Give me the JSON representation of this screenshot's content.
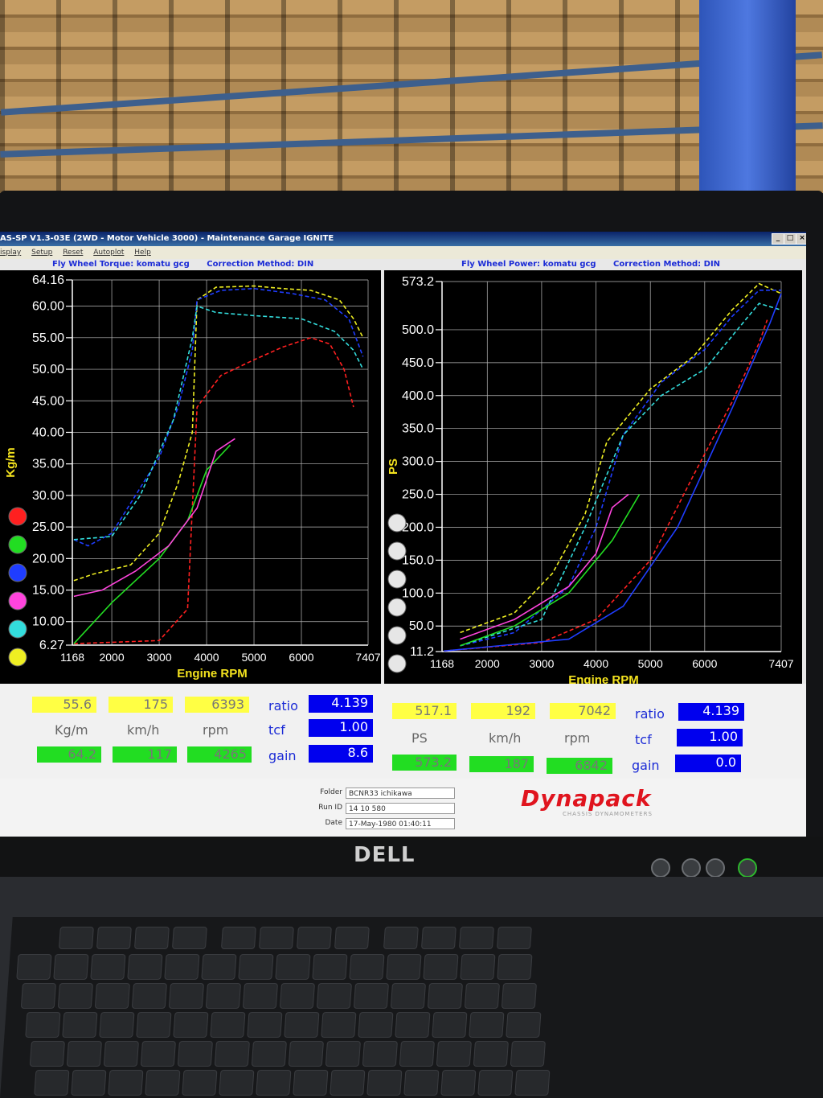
{
  "window": {
    "title": "AS-SP V1.3-03E  (2WD - Motor Vehicle 3000) - Maintenance Garage IGNITE",
    "menu": [
      "isplay",
      "Setup",
      "Reset",
      "Autoplot",
      "Help"
    ],
    "controls": [
      "_",
      "□",
      "×"
    ]
  },
  "torque_chart": {
    "header_left": "Fly Wheel Torque: komatu gcg",
    "header_right": "Correction Method: DIN",
    "ylabel": "Kg/m",
    "xlabel": "Engine RPM",
    "yticks": [
      "64.16",
      "60.00",
      "55.00",
      "50.00",
      "45.00",
      "40.00",
      "35.00",
      "30.00",
      "25.00",
      "20.00",
      "15.00",
      "10.00",
      "6.27"
    ],
    "xticks": [
      "1168",
      "2000",
      "3000",
      "4000",
      "5000",
      "6000",
      "7407"
    ]
  },
  "power_chart": {
    "header_left": "Fly Wheel Power: komatu gcg",
    "header_right": "Correction Method: DIN",
    "ylabel": "PS",
    "xlabel": "Engine RPM",
    "yticks": [
      "573.2",
      "500.0",
      "450.0",
      "400.0",
      "350.0",
      "300.0",
      "250.0",
      "200.0",
      "150.0",
      "100.0",
      "50.0",
      "11.2"
    ],
    "xticks": [
      "1168",
      "2000",
      "3000",
      "4000",
      "5000",
      "6000",
      "7407"
    ]
  },
  "legend_colors": [
    "#ff2020",
    "#22dd22",
    "#1f3dff",
    "#ff44dd",
    "#33dddd",
    "#eeee22"
  ],
  "readout_left": {
    "top": [
      "55.6",
      "175",
      "6393"
    ],
    "units": [
      "Kg/m",
      "km/h",
      "rpm"
    ],
    "bottom": [
      "64.2",
      "117",
      "4265"
    ],
    "labels": [
      "ratio",
      "tcf",
      "gain"
    ],
    "values": [
      "4.139",
      "1.00",
      "8.6"
    ]
  },
  "readout_right": {
    "top": [
      "517.1",
      "192",
      "7042"
    ],
    "units": [
      "PS",
      "km/h",
      "rpm"
    ],
    "bottom": [
      "573.2",
      "187",
      "6842"
    ],
    "labels": [
      "ratio",
      "tcf",
      "gain"
    ],
    "values": [
      "4.139",
      "1.00",
      "0.0"
    ]
  },
  "footer": {
    "folder_label": "Folder",
    "folder": "BCNR33 ichikawa",
    "run_label": "Run ID",
    "run": "14 10 580",
    "date_label": "Date",
    "date": "17-May-1980  01:40:11",
    "brand": "Dynapack",
    "brand_sub": "CHASSIS DYNAMOMETERS"
  },
  "monitor": {
    "brand": "DELL"
  },
  "chart_data": [
    {
      "type": "line",
      "title": "Fly Wheel Torque: komatu gcg",
      "xlabel": "Engine RPM",
      "ylabel": "Kg/m",
      "xlim": [
        1168,
        7407
      ],
      "ylim": [
        6.27,
        64.16
      ],
      "series": [
        {
          "color": "#eeee22",
          "points": [
            [
              1200,
              16.5
            ],
            [
              1600,
              17.5
            ],
            [
              2400,
              19
            ],
            [
              3000,
              24
            ],
            [
              3400,
              32
            ],
            [
              3700,
              40
            ],
            [
              3800,
              61
            ],
            [
              4200,
              63
            ],
            [
              5000,
              63.2
            ],
            [
              5600,
              62.8
            ],
            [
              6200,
              62.5
            ],
            [
              6800,
              61
            ],
            [
              7100,
              58
            ],
            [
              7300,
              55
            ]
          ]
        },
        {
          "color": "#1f3dff",
          "points": [
            [
              1200,
              23
            ],
            [
              1500,
              22
            ],
            [
              2000,
              24
            ],
            [
              2500,
              30
            ],
            [
              3000,
              36
            ],
            [
              3400,
              44
            ],
            [
              3700,
              53
            ],
            [
              3800,
              61
            ],
            [
              4300,
              62.5
            ],
            [
              5000,
              62.8
            ],
            [
              5800,
              62
            ],
            [
              6500,
              61
            ],
            [
              7000,
              58
            ],
            [
              7300,
              52
            ]
          ]
        },
        {
          "color": "#33dddd",
          "points": [
            [
              1200,
              23
            ],
            [
              2000,
              23.5
            ],
            [
              2600,
              30
            ],
            [
              3300,
              42
            ],
            [
              3700,
              55
            ],
            [
              3800,
              60
            ],
            [
              4200,
              59
            ],
            [
              5000,
              58.5
            ],
            [
              6000,
              58
            ],
            [
              6700,
              56
            ],
            [
              7100,
              53
            ],
            [
              7300,
              50
            ]
          ]
        },
        {
          "color": "#ff2020",
          "points": [
            [
              1200,
              6.5
            ],
            [
              3000,
              7
            ],
            [
              3600,
              12
            ],
            [
              3800,
              44
            ],
            [
              4300,
              49
            ],
            [
              5000,
              51.5
            ],
            [
              5600,
              53.5
            ],
            [
              6200,
              55
            ],
            [
              6600,
              54
            ],
            [
              6900,
              50
            ],
            [
              7100,
              44
            ]
          ]
        },
        {
          "color": "#22dd22",
          "points": [
            [
              1200,
              6.5
            ],
            [
              2000,
              13
            ],
            [
              3000,
              20
            ],
            [
              3600,
              26
            ],
            [
              4000,
              34
            ],
            [
              4500,
              38
            ]
          ]
        },
        {
          "color": "#ff44dd",
          "points": [
            [
              1200,
              14
            ],
            [
              1800,
              15
            ],
            [
              2500,
              18
            ],
            [
              3200,
              22
            ],
            [
              3800,
              28
            ],
            [
              4200,
              37
            ],
            [
              4600,
              39
            ]
          ]
        }
      ]
    },
    {
      "type": "line",
      "title": "Fly Wheel Power: komatu gcg",
      "xlabel": "Engine RPM",
      "ylabel": "PS",
      "xlim": [
        1168,
        7407
      ],
      "ylim": [
        11.2,
        573.2
      ],
      "series": [
        {
          "color": "#eeee22",
          "points": [
            [
              1500,
              40
            ],
            [
              2500,
              70
            ],
            [
              3200,
              130
            ],
            [
              3800,
              220
            ],
            [
              4200,
              330
            ],
            [
              5000,
              410
            ],
            [
              5800,
              460
            ],
            [
              6500,
              530
            ],
            [
              7000,
              570
            ],
            [
              7407,
              555
            ]
          ]
        },
        {
          "color": "#1f3dff",
          "points": [
            [
              1500,
              20
            ],
            [
              2500,
              40
            ],
            [
              3500,
              110
            ],
            [
              4000,
              200
            ],
            [
              4500,
              340
            ],
            [
              5200,
              420
            ],
            [
              6000,
              470
            ],
            [
              6500,
              520
            ],
            [
              7000,
              560
            ],
            [
              7407,
              560
            ]
          ]
        },
        {
          "color": "#33dddd",
          "points": [
            [
              1500,
              20
            ],
            [
              3000,
              60
            ],
            [
              3800,
              200
            ],
            [
              4500,
              340
            ],
            [
              5200,
              400
            ],
            [
              6000,
              440
            ],
            [
              6600,
              500
            ],
            [
              7000,
              540
            ],
            [
              7407,
              530
            ]
          ]
        },
        {
          "color": "#ff2020",
          "points": [
            [
              1200,
              12
            ],
            [
              3000,
              25
            ],
            [
              4000,
              60
            ],
            [
              5000,
              150
            ],
            [
              5800,
              280
            ],
            [
              6500,
              390
            ],
            [
              7000,
              480
            ],
            [
              7150,
              515
            ]
          ]
        },
        {
          "color": "#1f3dff",
          "points": [
            [
              1200,
              12
            ],
            [
              3500,
              30
            ],
            [
              4500,
              80
            ],
            [
              5500,
              200
            ],
            [
              6500,
              380
            ],
            [
              7200,
              510
            ],
            [
              7407,
              555
            ]
          ]
        },
        {
          "color": "#ff44dd",
          "points": [
            [
              1500,
              30
            ],
            [
              2500,
              60
            ],
            [
              3500,
              110
            ],
            [
              4000,
              160
            ],
            [
              4300,
              230
            ],
            [
              4600,
              250
            ]
          ]
        },
        {
          "color": "#22dd22",
          "points": [
            [
              1500,
              20
            ],
            [
              2500,
              50
            ],
            [
              3500,
              100
            ],
            [
              4300,
              180
            ],
            [
              4800,
              250
            ]
          ]
        }
      ]
    }
  ]
}
